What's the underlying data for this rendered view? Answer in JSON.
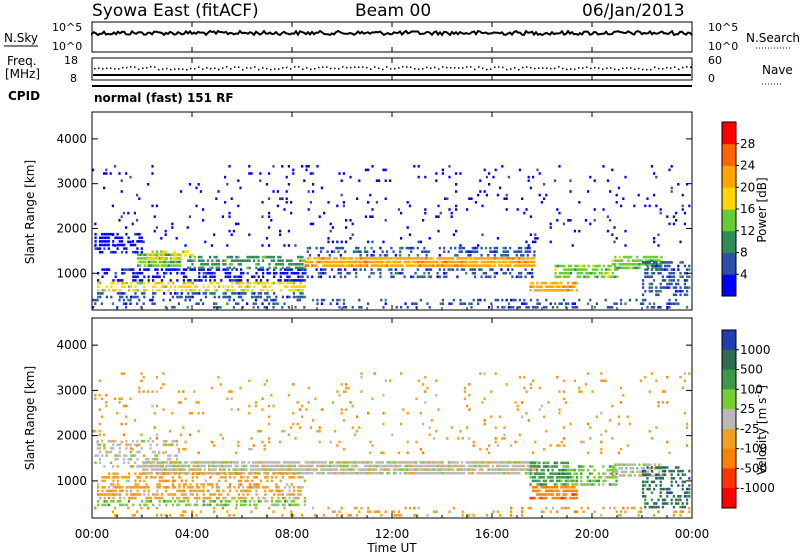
{
  "header": {
    "station": "Syowa East (fitACF)",
    "beam": "Beam 00",
    "date": "06/Jan/2013"
  },
  "status_panels": {
    "nsky_label": "N.Sky",
    "nsky_ticks": [
      "10^5",
      "10^0"
    ],
    "nsearch_label": "N.Search",
    "nsearch_ticks": [
      "10^5",
      "10^0"
    ],
    "freq_label": "Freq.",
    "freq_unit": "[MHz]",
    "freq_ticks": [
      "18",
      "8"
    ],
    "nave_label": "Nave",
    "nave_ticks": [
      "60",
      "0"
    ],
    "cpid_label": "CPID",
    "cpid_value": "normal (fast) 151 RF"
  },
  "chart_data": [
    {
      "type": "heatmap",
      "name": "power",
      "ylabel": "Slant Range [km]",
      "ylim": [
        180,
        4600
      ],
      "yticks": [
        1000,
        2000,
        3000,
        4000
      ],
      "colorbar": {
        "label": "Power [dB]",
        "ticks": [
          "4",
          "8",
          "12",
          "16",
          "20",
          "24",
          "28"
        ],
        "range": [
          0,
          32
        ],
        "colors": [
          "#0000ff",
          "#2a4fa8",
          "#2e8b57",
          "#66cc33",
          "#ffd700",
          "#ffa500",
          "#ff6600",
          "#ff0000"
        ]
      },
      "bands": [
        {
          "t0": 0.1,
          "t1": 2.0,
          "r0": 1450,
          "r1": 1900,
          "level": 0,
          "density": 0.55
        },
        {
          "t0": 1.8,
          "t1": 3.5,
          "r0": 1150,
          "r1": 1450,
          "level": 3,
          "density": 0.9
        },
        {
          "t0": 2.2,
          "t1": 4.0,
          "r0": 1300,
          "r1": 1500,
          "level": 4,
          "density": 0.5
        },
        {
          "t0": 0.2,
          "t1": 8.5,
          "r0": 820,
          "r1": 1100,
          "level": 0,
          "density": 0.45
        },
        {
          "t0": 0.2,
          "t1": 8.5,
          "r0": 600,
          "r1": 800,
          "level": 4,
          "density": 0.55
        },
        {
          "t0": 0.2,
          "t1": 8.5,
          "r0": 450,
          "r1": 600,
          "level": 1,
          "density": 0.5
        },
        {
          "t0": 3.8,
          "t1": 8.5,
          "r0": 1100,
          "r1": 1350,
          "level": 2,
          "density": 0.55
        },
        {
          "t0": 8.5,
          "t1": 17.7,
          "r0": 1150,
          "r1": 1380,
          "level": 5,
          "density": 0.95
        },
        {
          "t0": 8.5,
          "t1": 17.7,
          "r0": 1380,
          "r1": 1600,
          "level": 1,
          "density": 0.4
        },
        {
          "t0": 8.5,
          "t1": 17.7,
          "r0": 900,
          "r1": 1100,
          "level": 1,
          "density": 0.35
        },
        {
          "t0": 17.5,
          "t1": 19.4,
          "r0": 600,
          "r1": 800,
          "level": 5,
          "density": 0.8
        },
        {
          "t0": 18.5,
          "t1": 21.0,
          "r0": 900,
          "r1": 1200,
          "level": 3,
          "density": 0.7
        },
        {
          "t0": 20.8,
          "t1": 22.8,
          "r0": 1100,
          "r1": 1350,
          "level": 3,
          "density": 0.8
        },
        {
          "t0": 22.0,
          "t1": 24.0,
          "r0": 500,
          "r1": 1300,
          "level": 1,
          "density": 0.55
        },
        {
          "t0": 0.0,
          "t1": 24.0,
          "r0": 220,
          "r1": 450,
          "level": 1,
          "density": 0.25
        },
        {
          "t0": 0.0,
          "t1": 24.0,
          "r0": 1600,
          "r1": 3400,
          "level": 0,
          "density": 0.05
        }
      ]
    },
    {
      "type": "heatmap",
      "name": "velocity",
      "ylabel": "Slant Range [km]",
      "ylim": [
        180,
        4600
      ],
      "yticks": [
        1000,
        2000,
        3000,
        4000
      ],
      "colorbar": {
        "label": "Velocity [m s^-1]",
        "ticks": [
          "1000",
          "500",
          "100",
          "25",
          "-25",
          "-100",
          "-500",
          "-1000"
        ],
        "colors": [
          "#1f3fb0",
          "#2e6b4f",
          "#3a9a4a",
          "#77cc33",
          "#b8b8b8",
          "#f0a020",
          "#ff7f00",
          "#ff3300",
          "#ff0000"
        ]
      },
      "bands": [
        {
          "t0": 0.1,
          "t1": 3.5,
          "r0": 1300,
          "r1": 1900,
          "level": 4,
          "density": 0.4
        },
        {
          "t0": 2.0,
          "t1": 17.8,
          "r0": 1150,
          "r1": 1450,
          "level": 4,
          "density": 0.9
        },
        {
          "t0": 0.2,
          "t1": 8.5,
          "r0": 600,
          "r1": 900,
          "level": 5,
          "density": 0.55
        },
        {
          "t0": 0.2,
          "t1": 8.5,
          "r0": 900,
          "r1": 1150,
          "level": 5,
          "density": 0.35
        },
        {
          "t0": 0.2,
          "t1": 8.5,
          "r0": 450,
          "r1": 600,
          "level": 3,
          "density": 0.5
        },
        {
          "t0": 17.5,
          "t1": 19.4,
          "r0": 600,
          "r1": 850,
          "level": 6,
          "density": 0.8
        },
        {
          "t0": 17.5,
          "t1": 19.0,
          "r0": 900,
          "r1": 1400,
          "level": 2,
          "density": 0.7
        },
        {
          "t0": 19.0,
          "t1": 21.0,
          "r0": 900,
          "r1": 1300,
          "level": 3,
          "density": 0.6
        },
        {
          "t0": 20.8,
          "t1": 22.8,
          "r0": 1100,
          "r1": 1400,
          "level": 4,
          "density": 0.7
        },
        {
          "t0": 22.0,
          "t1": 24.0,
          "r0": 400,
          "r1": 1300,
          "level": 1,
          "density": 0.45
        },
        {
          "t0": 0.0,
          "t1": 24.0,
          "r0": 220,
          "r1": 450,
          "level": 5,
          "density": 0.2
        },
        {
          "t0": 0.0,
          "t1": 24.0,
          "r0": 1600,
          "r1": 3400,
          "level": 5,
          "density": 0.05
        }
      ]
    }
  ],
  "xaxis": {
    "label": "Time UT",
    "ticks": [
      "00:00",
      "04:00",
      "08:00",
      "12:00",
      "16:00",
      "20:00",
      "00:00"
    ],
    "xlim_hours": [
      0,
      24
    ]
  }
}
